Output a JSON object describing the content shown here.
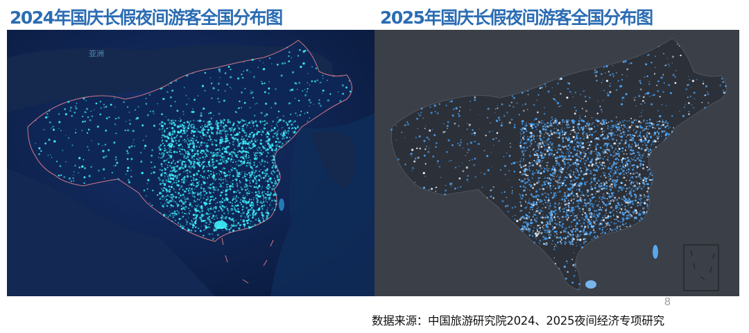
{
  "titles": {
    "left": "2024年国庆长假夜间游客全国分布图",
    "right": "2025年国庆长假夜间游客全国分布图"
  },
  "map_left": {
    "region_label": "亚洲",
    "dot_color": "#3ff2ff",
    "background_color": "#0d2248",
    "border_color": "#d27a86"
  },
  "map_right": {
    "dot_color": "#4aa8ff",
    "highlight_color": "#e6f2ff",
    "background_color": "#3a3f48"
  },
  "footer": {
    "page_number": "8",
    "source": "数据来源：中国旅游研究院2024、2025夜间经济专项研究"
  }
}
